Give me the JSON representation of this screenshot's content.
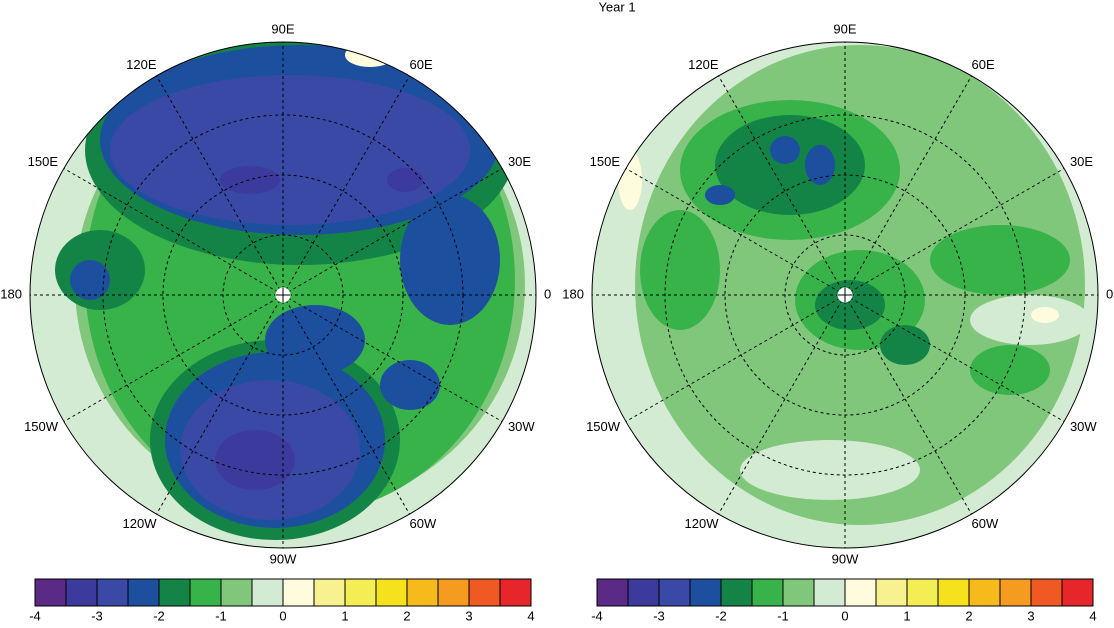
{
  "title": "Year 1",
  "lon_labels": [
    "0",
    "30E",
    "60E",
    "90E",
    "120E",
    "150E",
    "180",
    "150W",
    "120W",
    "90W",
    "60W",
    "30W"
  ],
  "colorbar": {
    "colors": [
      "#5b2a86",
      "#3c3a9c",
      "#3a49a6",
      "#1d4f9f",
      "#138446",
      "#37b34a",
      "#80c77c",
      "#d3ebd2",
      "#fffcdd",
      "#f7f28f",
      "#f4ee55",
      "#f5e21c",
      "#f7ba1d",
      "#f49b20",
      "#ef5a24",
      "#e7262c"
    ],
    "ticks": [
      -4,
      -3,
      -2,
      -1,
      0,
      1,
      2,
      3,
      4
    ],
    "lim": [
      -4,
      4
    ]
  }
}
